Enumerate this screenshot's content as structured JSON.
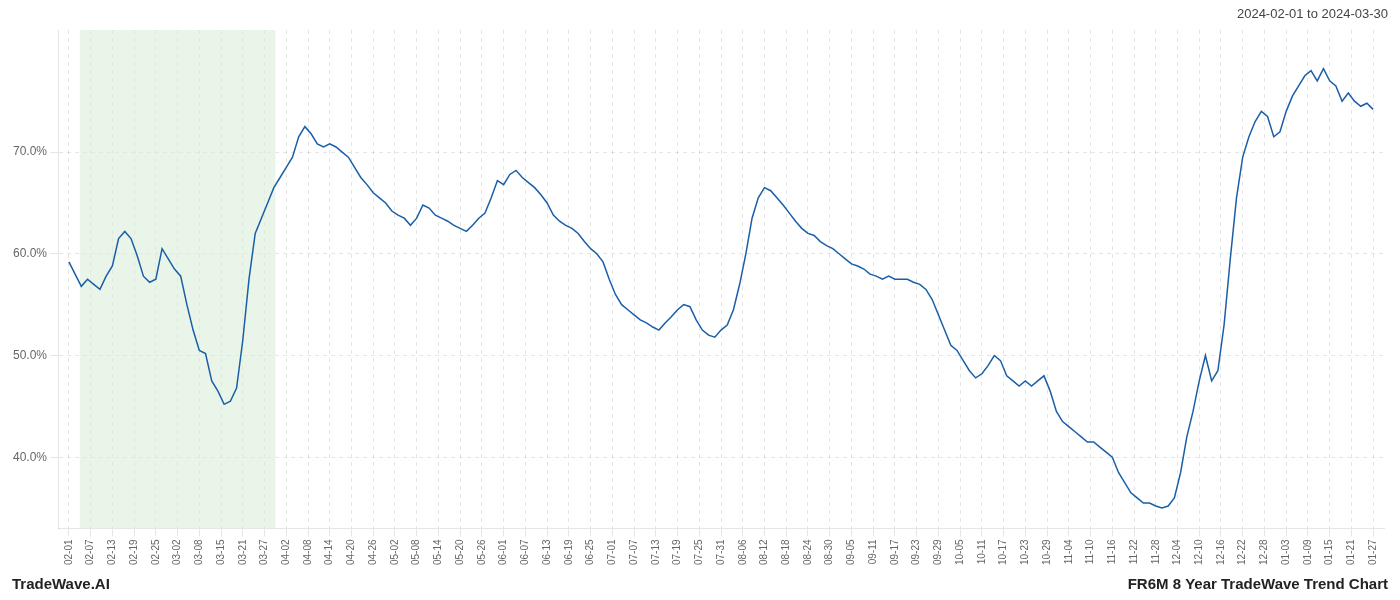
{
  "chart_data": {
    "type": "line",
    "title": "FR6M 8 Year TradeWave Trend Chart",
    "subtitle": "2024-02-01 to 2024-03-30",
    "annotations": [
      "TradeWave.AI"
    ],
    "color": "#1a5ea8",
    "grid": true,
    "highlight": {
      "from": "02-07",
      "to": "03-27",
      "color": "#d6edd6"
    },
    "xlim": [
      -0.5,
      60.5
    ],
    "xticks": [
      {
        "value": 0,
        "label": "02-01"
      },
      {
        "value": 1,
        "label": "02-07"
      },
      {
        "value": 2,
        "label": "02-13"
      },
      {
        "value": 3,
        "label": "02-19"
      },
      {
        "value": 4,
        "label": "02-25"
      },
      {
        "value": 5,
        "label": "03-02"
      },
      {
        "value": 6,
        "label": "03-08"
      },
      {
        "value": 7,
        "label": "03-15"
      },
      {
        "value": 8,
        "label": "03-21"
      },
      {
        "value": 9,
        "label": "03-27"
      },
      {
        "value": 10,
        "label": "04-02"
      },
      {
        "value": 11,
        "label": "04-08"
      },
      {
        "value": 12,
        "label": "04-14"
      },
      {
        "value": 13,
        "label": "04-20"
      },
      {
        "value": 14,
        "label": "04-26"
      },
      {
        "value": 15,
        "label": "05-02"
      },
      {
        "value": 16,
        "label": "05-08"
      },
      {
        "value": 17,
        "label": "05-14"
      },
      {
        "value": 18,
        "label": "05-20"
      },
      {
        "value": 19,
        "label": "05-26"
      },
      {
        "value": 20,
        "label": "06-01"
      },
      {
        "value": 21,
        "label": "06-07"
      },
      {
        "value": 22,
        "label": "06-13"
      },
      {
        "value": 23,
        "label": "06-19"
      },
      {
        "value": 24,
        "label": "06-25"
      },
      {
        "value": 25,
        "label": "07-01"
      },
      {
        "value": 26,
        "label": "07-07"
      },
      {
        "value": 27,
        "label": "07-13"
      },
      {
        "value": 28,
        "label": "07-19"
      },
      {
        "value": 29,
        "label": "07-25"
      },
      {
        "value": 30,
        "label": "07-31"
      },
      {
        "value": 31,
        "label": "08-06"
      },
      {
        "value": 32,
        "label": "08-12"
      },
      {
        "value": 33,
        "label": "08-18"
      },
      {
        "value": 34,
        "label": "08-24"
      },
      {
        "value": 35,
        "label": "08-30"
      },
      {
        "value": 36,
        "label": "09-05"
      },
      {
        "value": 37,
        "label": "09-11"
      },
      {
        "value": 38,
        "label": "09-17"
      },
      {
        "value": 39,
        "label": "09-23"
      },
      {
        "value": 40,
        "label": "09-29"
      },
      {
        "value": 41,
        "label": "10-05"
      },
      {
        "value": 42,
        "label": "10-11"
      },
      {
        "value": 43,
        "label": "10-17"
      },
      {
        "value": 44,
        "label": "10-23"
      },
      {
        "value": 45,
        "label": "10-29"
      },
      {
        "value": 46,
        "label": "11-04"
      },
      {
        "value": 47,
        "label": "11-10"
      },
      {
        "value": 48,
        "label": "11-16"
      },
      {
        "value": 49,
        "label": "11-22"
      },
      {
        "value": 50,
        "label": "11-28"
      },
      {
        "value": 51,
        "label": "12-04"
      },
      {
        "value": 52,
        "label": "12-10"
      },
      {
        "value": 53,
        "label": "12-16"
      },
      {
        "value": 54,
        "label": "12-22"
      },
      {
        "value": 55,
        "label": "12-28"
      },
      {
        "value": 56,
        "label": "01-03"
      },
      {
        "value": 57,
        "label": "01-09"
      },
      {
        "value": 58,
        "label": "01-15"
      },
      {
        "value": 59,
        "label": "01-21"
      },
      {
        "value": 60,
        "label": "01-27"
      }
    ],
    "ylim": [
      33,
      82
    ],
    "yticks": [
      {
        "value": 40.0,
        "label": "40.0%"
      },
      {
        "value": 50.0,
        "label": "50.0%"
      },
      {
        "value": 60.0,
        "label": "60.0%"
      },
      {
        "value": 70.0,
        "label": "70.0%"
      }
    ],
    "values": [
      59.2,
      58.0,
      56.8,
      57.5,
      57.0,
      56.5,
      57.8,
      58.8,
      61.5,
      62.2,
      61.5,
      59.8,
      57.8,
      57.2,
      57.5,
      60.5,
      59.5,
      58.5,
      57.8,
      55.0,
      52.5,
      50.5,
      50.2,
      47.5,
      46.5,
      45.2,
      45.5,
      46.8,
      51.5,
      57.5,
      62.0,
      63.5,
      65.0,
      66.5,
      67.5,
      68.5,
      69.5,
      71.5,
      72.5,
      71.8,
      70.8,
      70.5,
      70.8,
      70.5,
      70.0,
      69.5,
      68.5,
      67.5,
      66.8,
      66.0,
      65.5,
      65.0,
      64.2,
      63.8,
      63.5,
      62.8,
      63.5,
      64.8,
      64.5,
      63.8,
      63.5,
      63.2,
      62.8,
      62.5,
      62.2,
      62.8,
      63.5,
      64.0,
      65.5,
      67.2,
      66.8,
      67.8,
      68.2,
      67.5,
      67.0,
      66.5,
      65.8,
      65.0,
      63.8,
      63.2,
      62.8,
      62.5,
      62.0,
      61.2,
      60.5,
      60.0,
      59.2,
      57.5,
      56.0,
      55.0,
      54.5,
      54.0,
      53.5,
      53.2,
      52.8,
      52.5,
      53.2,
      53.8,
      54.5,
      55.0,
      54.8,
      53.5,
      52.5,
      52.0,
      51.8,
      52.5,
      53.0,
      54.5,
      57.0,
      60.0,
      63.5,
      65.5,
      66.5,
      66.2,
      65.5,
      64.8,
      64.0,
      63.2,
      62.5,
      62.0,
      61.8,
      61.2,
      60.8,
      60.5,
      60.0,
      59.5,
      59.0,
      58.8,
      58.5,
      58.0,
      57.8,
      57.5,
      57.8,
      57.5,
      57.5,
      57.5,
      57.2,
      57.0,
      56.5,
      55.5,
      54.0,
      52.5,
      51.0,
      50.5,
      49.5,
      48.5,
      47.8,
      48.2,
      49.0,
      50.0,
      49.5,
      48.0,
      47.5,
      47.0,
      47.5,
      47.0,
      47.5,
      48.0,
      46.5,
      44.5,
      43.5,
      43.0,
      42.5,
      42.0,
      41.5,
      41.5,
      41.0,
      40.5,
      40.0,
      38.5,
      37.5,
      36.5,
      36.0,
      35.5,
      35.5,
      35.2,
      35.0,
      35.2,
      36.0,
      38.5,
      42.0,
      44.5,
      47.5,
      50.0,
      47.5,
      48.5,
      53.0,
      59.5,
      65.5,
      69.5,
      71.5,
      73.0,
      74.0,
      73.5,
      71.5,
      72.0,
      74.0,
      75.5,
      76.5,
      77.5,
      78.0,
      77.0,
      78.2,
      77.0,
      76.5,
      75.0,
      75.8,
      75.0,
      74.5,
      74.8,
      74.2
    ]
  }
}
